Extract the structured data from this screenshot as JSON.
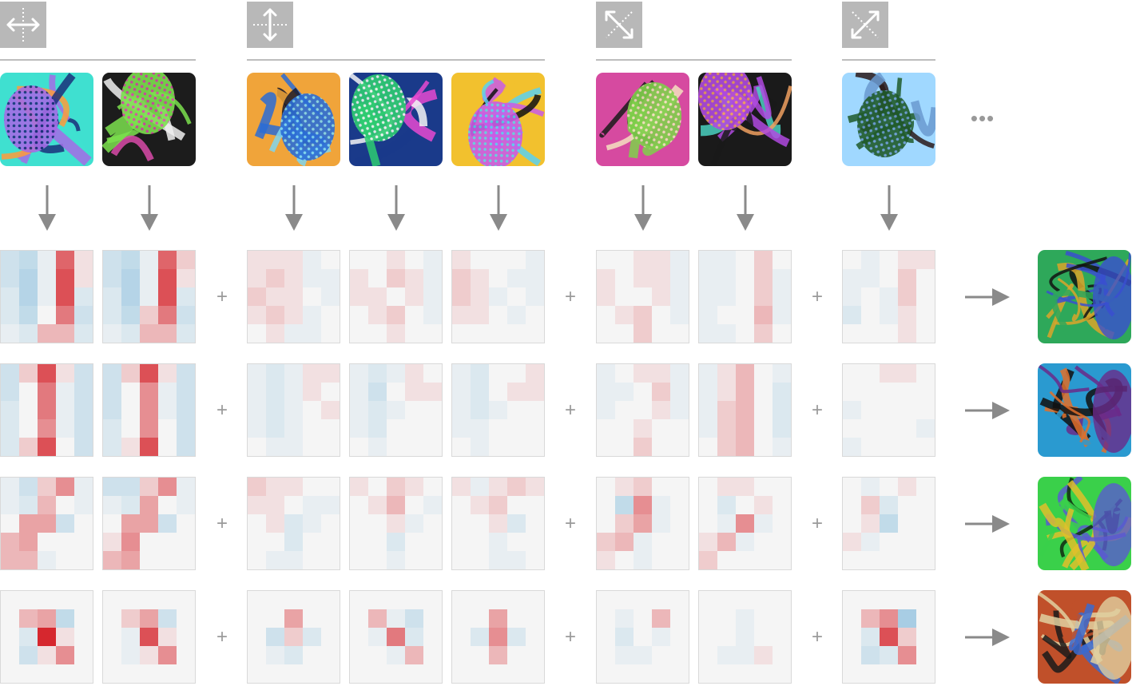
{
  "groups": [
    {
      "id": "horizontal",
      "icon": "horizontal-arrows-icon",
      "num_features": 2
    },
    {
      "id": "vertical",
      "icon": "vertical-arrows-icon",
      "num_features": 3
    },
    {
      "id": "diagonal-a",
      "icon": "diagonal-arrows-icon",
      "num_features": 2
    },
    {
      "id": "diagonal-b",
      "icon": "antidiagonal-arrows-icon",
      "num_features": 1
    }
  ],
  "more_indicator": "•••",
  "plus_symbol": "+",
  "colors": {
    "icon_bg": "#b8b8b8",
    "rule": "#bdbdbd",
    "arrow": "#8a8a8a",
    "kernel_neutral": "#f5f5f5",
    "kernel_positive": "#d6272e",
    "kernel_negative": "#74b3d8"
  },
  "feature_palettes": [
    [
      "#a46be6",
      "#3fe0d0",
      "#ff9b3a",
      "#1a2f7a"
    ],
    [
      "#7be04d",
      "#1c1c1c",
      "#f0f0f0",
      "#d84aa8"
    ],
    [
      "#2a6cd6",
      "#f0a43a",
      "#1a1a2a",
      "#7fd6ef"
    ],
    [
      "#2ecc71",
      "#1a3a8a",
      "#e84ad0",
      "#f5f5f5"
    ],
    [
      "#c95be8",
      "#f2c12e",
      "#111111",
      "#5ad1f0"
    ],
    [
      "#7fd04a",
      "#d64aa0",
      "#1a1a1a",
      "#f5e0c0"
    ],
    [
      "#b04ae0",
      "#1a1a1a",
      "#4ad0c0",
      "#f0a060"
    ],
    [
      "#1f5a2a",
      "#a0d8ff",
      "#2a1a1a",
      "#6a9ad0"
    ]
  ],
  "kernel_rows": [
    {
      "kernels": [
        [
          [
            -0.3,
            -0.4,
            -0.1,
            0.7,
            0.1
          ],
          [
            -0.3,
            -0.5,
            -0.1,
            0.8,
            0.1
          ],
          [
            -0.2,
            -0.5,
            -0.1,
            0.8,
            -0.2
          ],
          [
            -0.2,
            -0.4,
            0.0,
            0.6,
            -0.3
          ],
          [
            -0.1,
            -0.2,
            0.3,
            0.3,
            -0.2
          ]
        ],
        [
          [
            -0.3,
            -0.4,
            -0.1,
            0.7,
            0.2
          ],
          [
            -0.3,
            -0.5,
            -0.1,
            0.8,
            0.1
          ],
          [
            -0.2,
            -0.5,
            -0.1,
            0.8,
            -0.2
          ],
          [
            -0.2,
            -0.4,
            0.2,
            0.6,
            -0.3
          ],
          [
            -0.1,
            -0.2,
            0.3,
            0.3,
            -0.2
          ]
        ],
        [
          [
            0.1,
            0.1,
            0.1,
            -0.1,
            0.0
          ],
          [
            0.1,
            0.2,
            0.1,
            -0.1,
            -0.1
          ],
          [
            0.2,
            0.1,
            0.1,
            0.0,
            -0.1
          ],
          [
            0.1,
            0.2,
            0.1,
            -0.1,
            0.0
          ],
          [
            0.0,
            0.1,
            -0.1,
            -0.1,
            0.0
          ]
        ],
        [
          [
            0.0,
            0.0,
            0.1,
            0.0,
            -0.1
          ],
          [
            0.1,
            0.0,
            0.2,
            0.1,
            -0.1
          ],
          [
            0.1,
            0.1,
            0.0,
            0.1,
            -0.1
          ],
          [
            0.0,
            0.1,
            0.2,
            0.0,
            -0.1
          ],
          [
            0.0,
            0.0,
            0.1,
            0.0,
            0.0
          ]
        ],
        [
          [
            0.1,
            0.0,
            0.0,
            0.0,
            -0.1
          ],
          [
            0.2,
            0.1,
            0.0,
            -0.1,
            -0.1
          ],
          [
            0.2,
            0.1,
            -0.1,
            0.0,
            -0.1
          ],
          [
            0.1,
            0.1,
            0.0,
            -0.1,
            0.0
          ],
          [
            0.0,
            0.0,
            0.0,
            0.0,
            0.0
          ]
        ],
        [
          [
            0.0,
            0.0,
            0.1,
            0.1,
            -0.1
          ],
          [
            0.1,
            0.0,
            0.1,
            0.1,
            -0.1
          ],
          [
            0.1,
            0.0,
            0.0,
            0.1,
            -0.1
          ],
          [
            0.0,
            0.1,
            0.2,
            0.0,
            -0.1
          ],
          [
            0.0,
            0.0,
            0.2,
            0.0,
            0.0
          ]
        ],
        [
          [
            -0.1,
            -0.1,
            0.0,
            0.2,
            0.0
          ],
          [
            -0.1,
            -0.1,
            0.0,
            0.2,
            -0.1
          ],
          [
            -0.1,
            -0.1,
            0.0,
            0.2,
            -0.1
          ],
          [
            -0.1,
            0.0,
            0.0,
            0.3,
            -0.1
          ],
          [
            -0.1,
            -0.1,
            0.0,
            0.2,
            0.0
          ]
        ],
        [
          [
            0.0,
            -0.1,
            0.0,
            0.1,
            0.1
          ],
          [
            -0.1,
            -0.1,
            0.0,
            0.2,
            0.0
          ],
          [
            -0.1,
            0.0,
            -0.1,
            0.2,
            0.0
          ],
          [
            -0.2,
            0.0,
            -0.1,
            0.1,
            0.0
          ],
          [
            0.0,
            0.0,
            0.0,
            0.1,
            0.0
          ]
        ]
      ]
    },
    {
      "kernels": [
        [
          [
            -0.3,
            0.2,
            0.8,
            0.1,
            -0.3
          ],
          [
            -0.3,
            0.0,
            0.6,
            -0.1,
            -0.3
          ],
          [
            -0.2,
            0.0,
            0.6,
            -0.1,
            -0.3
          ],
          [
            -0.2,
            0.0,
            0.5,
            -0.1,
            -0.3
          ],
          [
            -0.2,
            0.2,
            0.8,
            0.0,
            -0.3
          ]
        ],
        [
          [
            -0.3,
            0.2,
            0.8,
            0.1,
            -0.3
          ],
          [
            -0.3,
            0.0,
            0.5,
            -0.1,
            -0.3
          ],
          [
            -0.3,
            0.0,
            0.5,
            -0.1,
            -0.3
          ],
          [
            -0.2,
            0.0,
            0.5,
            0.0,
            -0.3
          ],
          [
            -0.2,
            0.1,
            0.8,
            0.0,
            -0.3
          ]
        ],
        [
          [
            -0.1,
            -0.2,
            -0.1,
            0.1,
            0.1
          ],
          [
            -0.1,
            -0.2,
            -0.1,
            0.1,
            0.0
          ],
          [
            -0.1,
            -0.2,
            -0.1,
            0.0,
            0.1
          ],
          [
            -0.1,
            -0.2,
            -0.1,
            0.0,
            0.0
          ],
          [
            0.0,
            -0.1,
            -0.1,
            0.0,
            0.0
          ]
        ],
        [
          [
            -0.1,
            -0.2,
            -0.1,
            0.1,
            0.0
          ],
          [
            -0.1,
            -0.3,
            0.0,
            0.1,
            0.1
          ],
          [
            -0.1,
            -0.2,
            -0.1,
            0.0,
            0.0
          ],
          [
            -0.1,
            -0.2,
            0.0,
            0.0,
            0.0
          ],
          [
            0.0,
            -0.1,
            0.0,
            0.0,
            0.0
          ]
        ],
        [
          [
            -0.1,
            -0.2,
            0.0,
            0.0,
            0.1
          ],
          [
            -0.1,
            -0.2,
            0.0,
            0.1,
            0.1
          ],
          [
            -0.1,
            -0.2,
            -0.1,
            0.0,
            0.0
          ],
          [
            -0.1,
            -0.1,
            0.0,
            0.0,
            0.0
          ],
          [
            0.0,
            -0.1,
            0.0,
            0.0,
            0.0
          ]
        ],
        [
          [
            -0.1,
            0.0,
            0.1,
            0.1,
            -0.1
          ],
          [
            -0.1,
            -0.1,
            0.0,
            0.2,
            -0.1
          ],
          [
            -0.1,
            0.0,
            0.0,
            0.1,
            -0.1
          ],
          [
            0.0,
            0.0,
            0.1,
            0.0,
            0.0
          ],
          [
            0.0,
            0.0,
            0.2,
            0.0,
            0.0
          ]
        ],
        [
          [
            -0.1,
            0.1,
            0.3,
            0.0,
            -0.1
          ],
          [
            -0.1,
            0.1,
            0.3,
            0.0,
            -0.2
          ],
          [
            -0.1,
            0.2,
            0.3,
            0.0,
            -0.2
          ],
          [
            -0.1,
            0.2,
            0.3,
            0.0,
            -0.2
          ],
          [
            0.0,
            0.2,
            0.3,
            0.0,
            -0.1
          ]
        ],
        [
          [
            0.0,
            0.0,
            0.1,
            0.1,
            0.0
          ],
          [
            0.0,
            0.0,
            0.0,
            0.0,
            0.0
          ],
          [
            -0.1,
            0.0,
            0.0,
            0.0,
            0.0
          ],
          [
            0.0,
            0.0,
            0.0,
            0.0,
            -0.1
          ],
          [
            -0.1,
            0.0,
            0.0,
            0.0,
            0.0
          ]
        ]
      ]
    },
    {
      "kernels": [
        [
          [
            -0.1,
            -0.3,
            0.2,
            0.5,
            -0.1
          ],
          [
            -0.1,
            -0.2,
            0.3,
            0.0,
            -0.1
          ],
          [
            0.0,
            0.4,
            0.4,
            -0.3,
            0.0
          ],
          [
            0.3,
            0.4,
            0.0,
            0.0,
            0.0
          ],
          [
            0.3,
            0.3,
            -0.1,
            0.0,
            0.0
          ]
        ],
        [
          [
            -0.3,
            -0.3,
            0.2,
            0.5,
            -0.1
          ],
          [
            -0.1,
            -0.2,
            0.4,
            0.0,
            -0.1
          ],
          [
            0.0,
            0.4,
            0.4,
            -0.3,
            0.0
          ],
          [
            0.1,
            0.5,
            0.0,
            0.0,
            0.0
          ],
          [
            0.3,
            0.4,
            0.0,
            0.0,
            0.0
          ]
        ],
        [
          [
            0.2,
            0.1,
            0.1,
            0.0,
            0.0
          ],
          [
            0.1,
            0.1,
            0.0,
            -0.1,
            -0.1
          ],
          [
            0.0,
            0.1,
            -0.2,
            -0.1,
            0.0
          ],
          [
            0.0,
            0.0,
            -0.2,
            0.0,
            0.0
          ],
          [
            0.0,
            -0.1,
            -0.1,
            0.0,
            0.0
          ]
        ],
        [
          [
            0.1,
            0.0,
            0.2,
            0.1,
            0.0
          ],
          [
            0.0,
            0.1,
            0.3,
            0.0,
            -0.1
          ],
          [
            0.0,
            0.0,
            0.1,
            -0.1,
            0.0
          ],
          [
            0.0,
            0.0,
            -0.2,
            0.0,
            0.0
          ],
          [
            0.0,
            0.0,
            -0.1,
            0.0,
            0.0
          ]
        ],
        [
          [
            0.1,
            -0.1,
            0.1,
            0.2,
            0.1
          ],
          [
            0.0,
            0.1,
            0.2,
            0.0,
            0.0
          ],
          [
            0.0,
            0.0,
            0.1,
            -0.2,
            0.0
          ],
          [
            0.0,
            0.0,
            -0.1,
            0.0,
            0.0
          ],
          [
            0.0,
            0.0,
            -0.1,
            -0.1,
            0.0
          ]
        ],
        [
          [
            0.0,
            0.1,
            0.2,
            0.0,
            0.0
          ],
          [
            0.0,
            -0.4,
            0.5,
            -0.1,
            0.0
          ],
          [
            0.0,
            0.2,
            0.4,
            -0.1,
            0.0
          ],
          [
            0.2,
            0.3,
            -0.1,
            0.0,
            0.0
          ],
          [
            0.1,
            0.0,
            -0.1,
            0.0,
            0.0
          ]
        ],
        [
          [
            0.0,
            0.1,
            0.1,
            0.0,
            0.0
          ],
          [
            0.0,
            -0.2,
            0.0,
            0.1,
            0.0
          ],
          [
            0.0,
            -0.1,
            0.5,
            -0.1,
            0.0
          ],
          [
            0.1,
            0.3,
            -0.1,
            0.0,
            0.0
          ],
          [
            0.2,
            0.0,
            0.0,
            0.0,
            0.0
          ]
        ],
        [
          [
            0.0,
            -0.1,
            0.0,
            0.1,
            0.0
          ],
          [
            0.0,
            0.2,
            -0.2,
            0.0,
            0.0
          ],
          [
            0.0,
            0.1,
            -0.4,
            0.0,
            0.0
          ],
          [
            0.1,
            -0.1,
            0.0,
            0.0,
            0.0
          ],
          [
            0.0,
            0.0,
            0.0,
            0.0,
            0.0
          ]
        ]
      ]
    },
    {
      "kernels": [
        [
          [
            0.3,
            0.4,
            -0.4
          ],
          [
            -0.2,
            1.0,
            0.1
          ],
          [
            -0.3,
            0.1,
            0.5
          ]
        ],
        [
          [
            0.2,
            0.4,
            -0.3
          ],
          [
            -0.1,
            0.8,
            0.1
          ],
          [
            -0.1,
            0.1,
            0.5
          ]
        ],
        [
          [
            0.0,
            0.4,
            0.0
          ],
          [
            -0.3,
            0.2,
            -0.2
          ],
          [
            -0.1,
            -0.2,
            0.0
          ]
        ],
        [
          [
            0.3,
            -0.1,
            -0.3
          ],
          [
            -0.1,
            0.6,
            -0.2
          ],
          [
            0.0,
            -0.1,
            0.3
          ]
        ],
        [
          [
            0.0,
            0.4,
            0.0
          ],
          [
            -0.2,
            0.5,
            -0.2
          ],
          [
            0.0,
            0.3,
            0.0
          ]
        ],
        [
          [
            -0.1,
            0.0,
            0.3
          ],
          [
            -0.2,
            0.0,
            -0.1
          ],
          [
            -0.1,
            -0.1,
            0.0
          ]
        ],
        [
          [
            0.0,
            -0.1,
            0.0
          ],
          [
            0.0,
            -0.1,
            0.0
          ],
          [
            -0.1,
            -0.1,
            0.1
          ]
        ],
        [
          [
            0.3,
            0.5,
            -0.6
          ],
          [
            -0.2,
            0.8,
            0.2
          ],
          [
            -0.3,
            -0.2,
            0.5
          ]
        ]
      ]
    }
  ],
  "result_palettes": [
    [
      "#2ea85a",
      "#d9a52a",
      "#3a4fd0",
      "#121212"
    ],
    [
      "#2a9ad0",
      "#e0702a",
      "#6a2a8a",
      "#111111"
    ],
    [
      "#3ad04a",
      "#e0c02a",
      "#5a5ad0",
      "#102a10"
    ],
    [
      "#c0502a",
      "#3a6ad0",
      "#e0d0a0",
      "#1a1a1a"
    ]
  ]
}
